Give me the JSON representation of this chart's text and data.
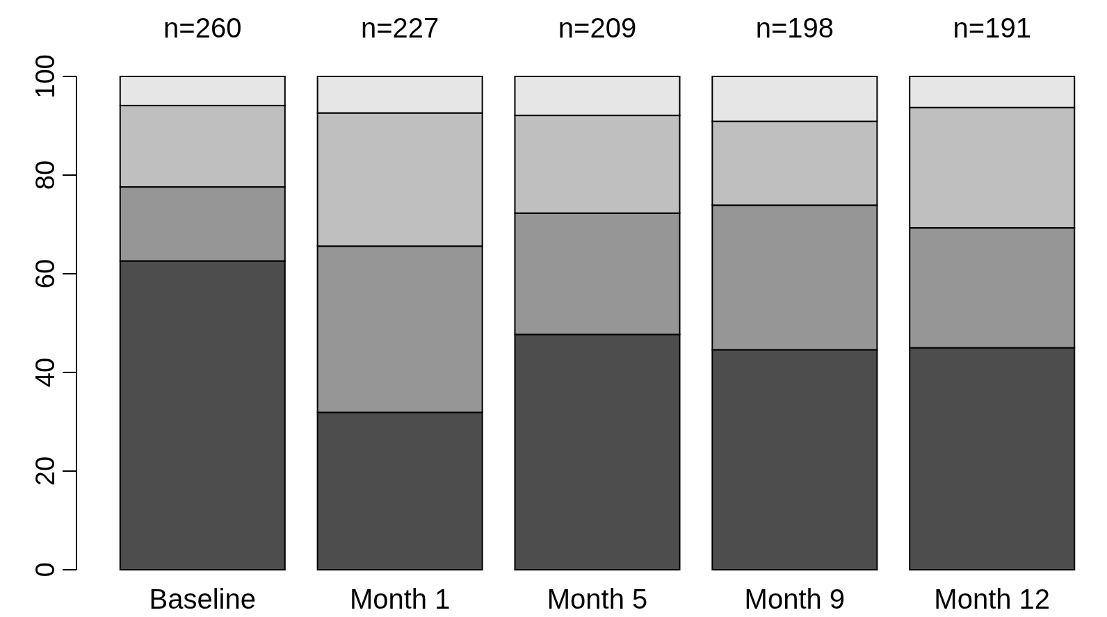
{
  "chart_data": {
    "type": "bar",
    "stacked": true,
    "categories": [
      "Baseline",
      "Month 1",
      "Month 5",
      "Month 9",
      "Month 12"
    ],
    "series": [
      {
        "color": "#4d4d4d",
        "values": [
          62.6,
          31.9,
          47.7,
          44.6,
          45.0
        ]
      },
      {
        "color": "#969696",
        "values": [
          15.0,
          33.7,
          24.6,
          29.3,
          24.3
        ]
      },
      {
        "color": "#bfbfbf",
        "values": [
          16.5,
          27.0,
          19.8,
          17.0,
          24.4
        ]
      },
      {
        "color": "#e6e6e6",
        "values": [
          5.9,
          7.4,
          7.9,
          9.1,
          6.3
        ]
      }
    ],
    "ylim": [
      0,
      100
    ],
    "yticks": [
      0,
      20,
      40,
      60,
      80,
      100
    ],
    "grid": false,
    "annotations": [
      "n=260",
      "n=227",
      "n=209",
      "n=198",
      "n=191"
    ]
  }
}
